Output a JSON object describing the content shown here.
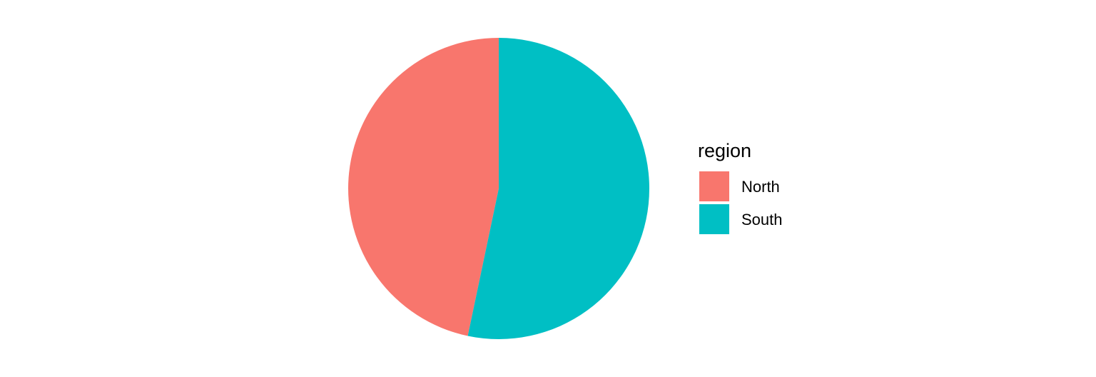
{
  "chart_data": {
    "type": "pie",
    "title": "",
    "legend": {
      "title": "region",
      "position": "right"
    },
    "slices": [
      {
        "label": "North",
        "value": 46.7,
        "color": "#F8766D"
      },
      {
        "label": "South",
        "value": 53.3,
        "color": "#00BFC4"
      }
    ],
    "start_angle": "top",
    "direction": "counterclockwise"
  }
}
